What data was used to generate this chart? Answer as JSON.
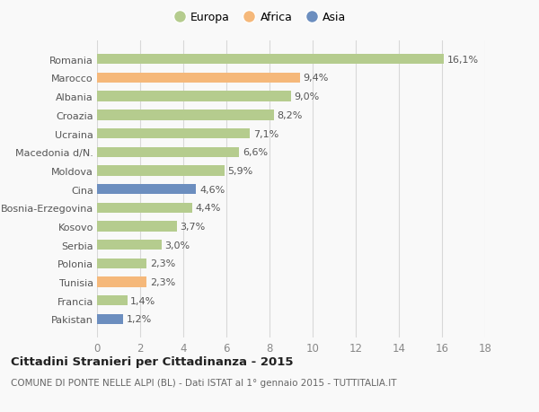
{
  "categories": [
    "Romania",
    "Marocco",
    "Albania",
    "Croazia",
    "Ucraina",
    "Macedonia d/N.",
    "Moldova",
    "Cina",
    "Bosnia-Erzegovina",
    "Kosovo",
    "Serbia",
    "Polonia",
    "Tunisia",
    "Francia",
    "Pakistan"
  ],
  "values": [
    16.1,
    9.4,
    9.0,
    8.2,
    7.1,
    6.6,
    5.9,
    4.6,
    4.4,
    3.7,
    3.0,
    2.3,
    2.3,
    1.4,
    1.2
  ],
  "labels": [
    "16,1%",
    "9,4%",
    "9,0%",
    "8,2%",
    "7,1%",
    "6,6%",
    "5,9%",
    "4,6%",
    "4,4%",
    "3,7%",
    "3,0%",
    "2,3%",
    "2,3%",
    "1,4%",
    "1,2%"
  ],
  "colors": [
    "#b5cc8e",
    "#f5b87a",
    "#b5cc8e",
    "#b5cc8e",
    "#b5cc8e",
    "#b5cc8e",
    "#b5cc8e",
    "#6c8ebf",
    "#b5cc8e",
    "#b5cc8e",
    "#b5cc8e",
    "#b5cc8e",
    "#f5b87a",
    "#b5cc8e",
    "#6c8ebf"
  ],
  "legend_labels": [
    "Europa",
    "Africa",
    "Asia"
  ],
  "legend_colors": [
    "#b5cc8e",
    "#f5b87a",
    "#6c8ebf"
  ],
  "title": "Cittadini Stranieri per Cittadinanza - 2015",
  "subtitle": "COMUNE DI PONTE NELLE ALPI (BL) - Dati ISTAT al 1° gennaio 2015 - TUTTITALIA.IT",
  "xlim": [
    0,
    18
  ],
  "xticks": [
    0,
    2,
    4,
    6,
    8,
    10,
    12,
    14,
    16,
    18
  ],
  "bg_color": "#f9f9f9",
  "grid_color": "#d8d8d8",
  "bar_height": 0.55,
  "label_fontsize": 8.0,
  "ytick_fontsize": 8.0,
  "xtick_fontsize": 8.5
}
